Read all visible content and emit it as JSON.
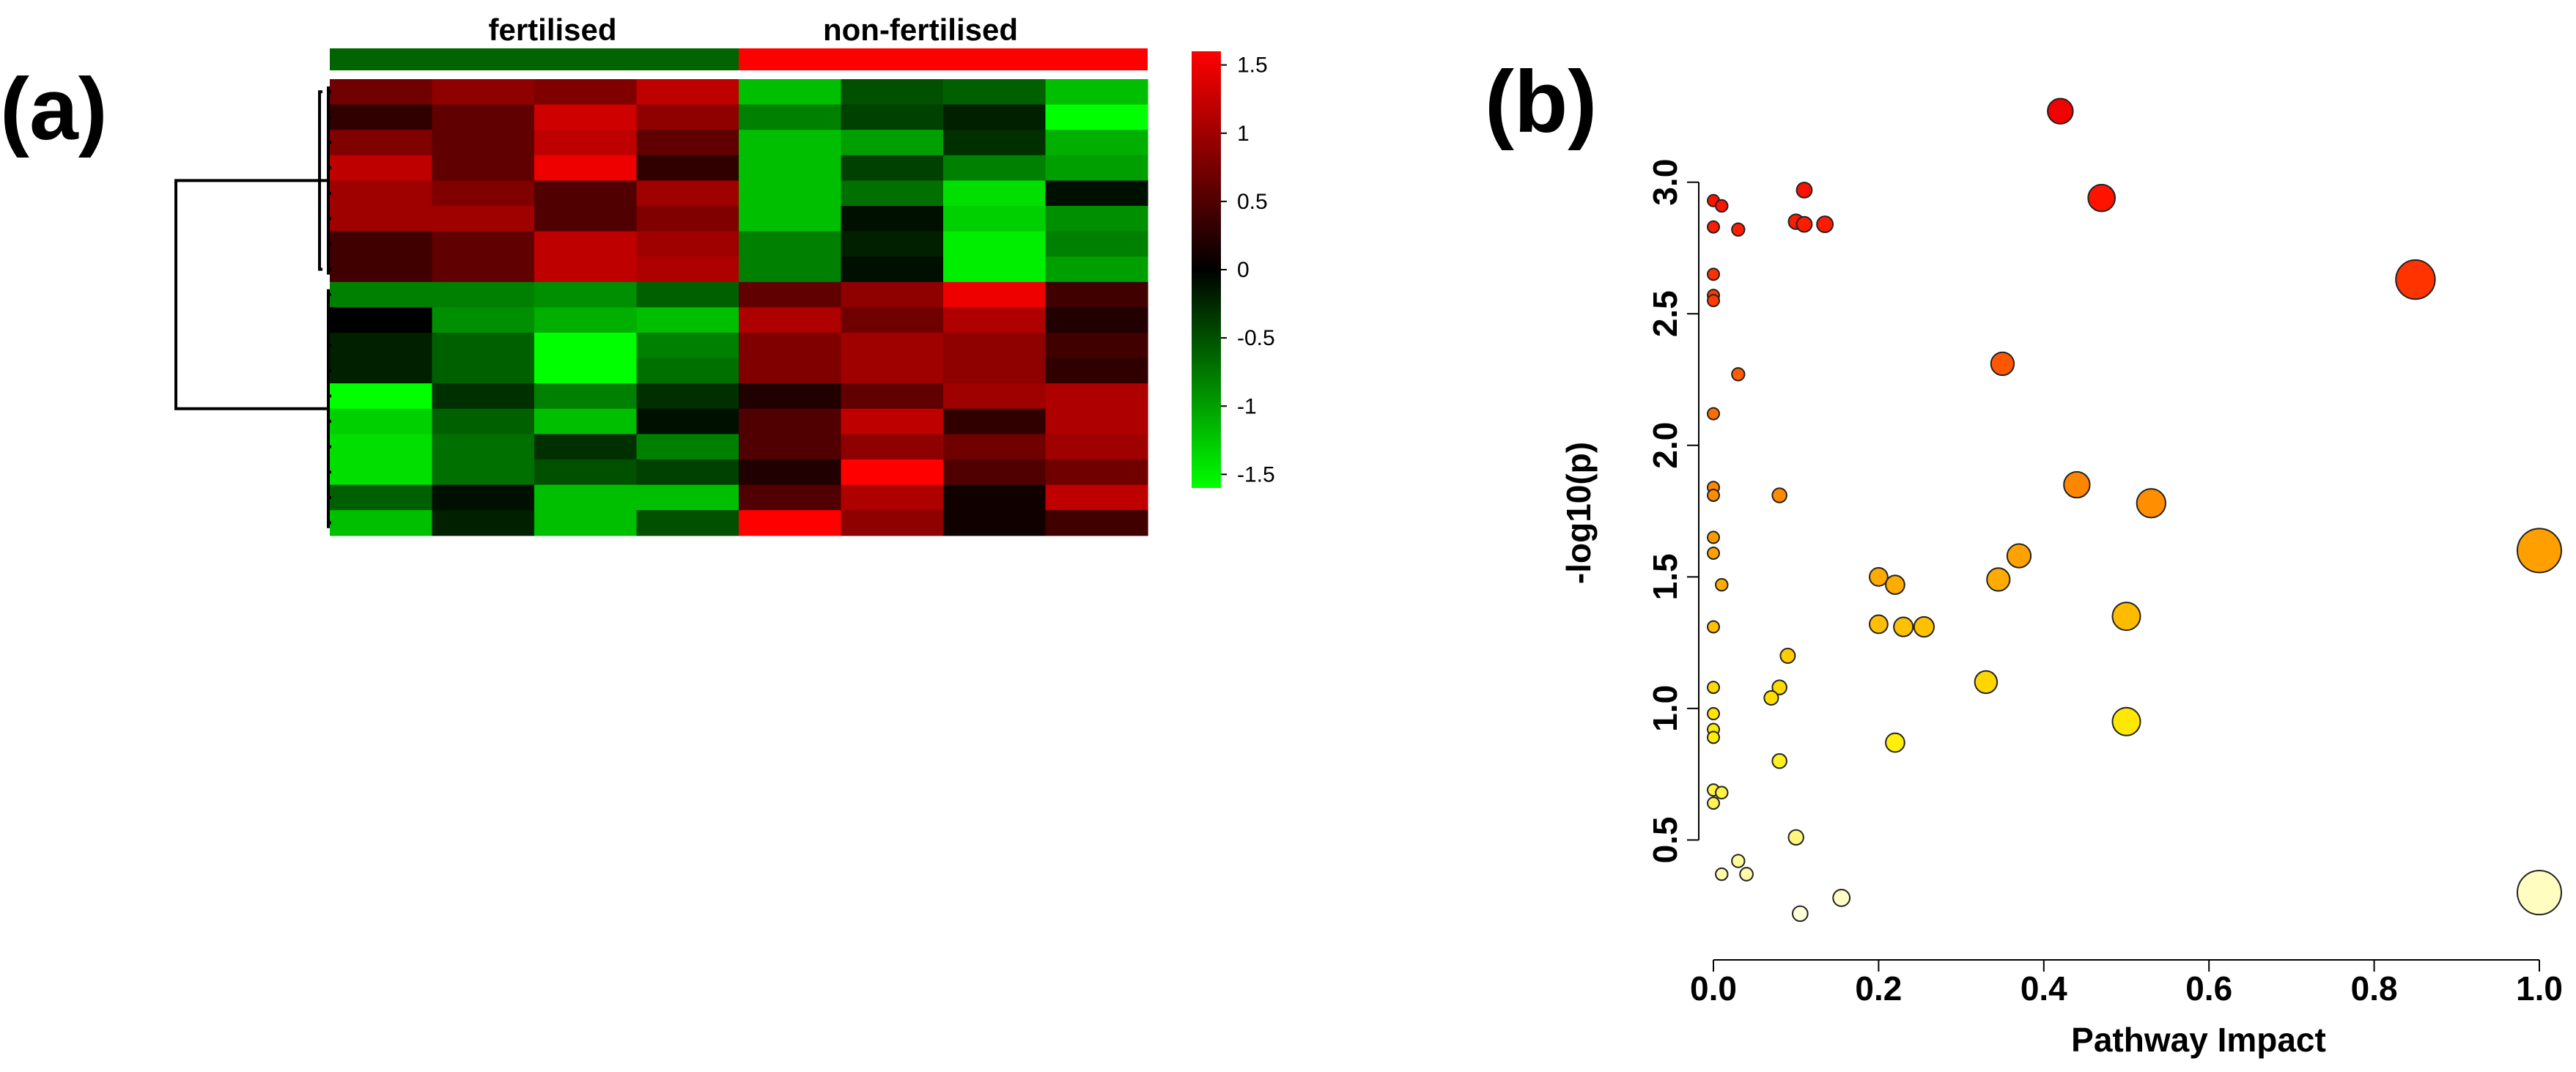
{
  "chart_data": [
    {
      "type": "heatmap",
      "panel_label": "(a)",
      "column_groups": [
        {
          "label": "fertilised",
          "color": "#006400",
          "columns": 4
        },
        {
          "label": "non-fertilised",
          "color": "#ff0000",
          "columns": 4
        }
      ],
      "color_scale": {
        "low": "#00ff00",
        "mid": "#000000",
        "high": "#ff0000",
        "min": -1.6,
        "max": 1.6,
        "tick_values": [
          1.5,
          1,
          0.5,
          0,
          -0.5,
          -1,
          -1.5
        ],
        "tick_labels": [
          "1.5",
          "1",
          "0.5",
          "0",
          "-0.5",
          "-1",
          "-1.5"
        ]
      },
      "rows": 18,
      "cols": 8,
      "values": [
        [
          0.7,
          0.9,
          0.8,
          1.2,
          -1.2,
          -0.5,
          -0.6,
          -1.2
        ],
        [
          0.3,
          0.6,
          1.3,
          0.9,
          -0.8,
          -0.4,
          -0.2,
          -1.6
        ],
        [
          0.8,
          0.6,
          1.2,
          0.6,
          -1.2,
          -1.0,
          -0.3,
          -1.1
        ],
        [
          1.2,
          0.6,
          1.5,
          0.3,
          -1.2,
          -0.4,
          -0.8,
          -1.0
        ],
        [
          1.0,
          0.8,
          0.5,
          1.0,
          -1.2,
          -0.7,
          -1.4,
          -0.1
        ],
        [
          1.0,
          1.0,
          0.5,
          0.8,
          -1.2,
          -0.1,
          -1.3,
          -0.9
        ],
        [
          0.4,
          0.6,
          1.2,
          1.0,
          -0.8,
          -0.2,
          -1.5,
          -0.8
        ],
        [
          0.4,
          0.6,
          1.2,
          1.1,
          -0.8,
          -0.1,
          -1.5,
          -1.0
        ],
        [
          -0.8,
          -0.8,
          -0.9,
          -0.6,
          0.6,
          0.9,
          1.5,
          0.4
        ],
        [
          0.0,
          -0.9,
          -1.1,
          -1.2,
          1.1,
          0.7,
          1.1,
          0.2
        ],
        [
          -0.2,
          -0.6,
          -1.6,
          -0.8,
          0.8,
          1.0,
          0.9,
          0.4
        ],
        [
          -0.2,
          -0.6,
          -1.6,
          -0.7,
          0.8,
          1.0,
          0.9,
          0.3
        ],
        [
          -1.6,
          -0.3,
          -0.8,
          -0.3,
          0.2,
          0.6,
          1.0,
          1.1
        ],
        [
          -1.3,
          -0.6,
          -1.2,
          -0.1,
          0.5,
          1.2,
          0.3,
          1.1
        ],
        [
          -1.4,
          -0.7,
          -0.3,
          -0.8,
          0.5,
          0.9,
          0.7,
          1.0
        ],
        [
          -1.4,
          -0.7,
          -0.5,
          -0.4,
          0.2,
          1.6,
          0.5,
          0.7
        ],
        [
          -0.6,
          -0.1,
          -1.2,
          -1.2,
          0.5,
          1.1,
          0.1,
          1.2
        ],
        [
          -1.2,
          -0.2,
          -1.2,
          -0.5,
          1.6,
          0.9,
          0.1,
          0.4
        ]
      ],
      "row_dendrogram": {
        "clusters": [
          8,
          10
        ]
      }
    },
    {
      "type": "scatter",
      "panel_label": "(b)",
      "xlabel": "Pathway Impact",
      "ylabel": "-log10(p)",
      "xlim": [
        0,
        1
      ],
      "ylim": [
        0.1,
        3.35
      ],
      "x_ticks": [
        0,
        0.2,
        0.4,
        0.6,
        0.8,
        1
      ],
      "x_tick_labels": [
        "0.0",
        "0.2",
        "0.4",
        "0.6",
        "0.8",
        "1.0"
      ],
      "y_ticks": [
        0.5,
        1,
        1.5,
        2,
        2.5,
        3
      ],
      "y_tick_labels": [
        "0.5",
        "1.0",
        "1.5",
        "2.0",
        "2.5",
        "3.0"
      ],
      "grid": false,
      "legend": "none",
      "color_note": "fill goes from pale yellow (low -log10 p) to red (high -log10 p); circle size grows with pathway impact",
      "points": [
        {
          "x": 0.42,
          "y": 3.27
        },
        {
          "x": 0.47,
          "y": 2.94
        },
        {
          "x": 0.11,
          "y": 2.97
        },
        {
          "x": 0.1,
          "y": 2.85
        },
        {
          "x": 0.11,
          "y": 2.84
        },
        {
          "x": 0.135,
          "y": 2.84
        },
        {
          "x": 0.03,
          "y": 2.82
        },
        {
          "x": 0.0,
          "y": 2.93
        },
        {
          "x": 0.01,
          "y": 2.91
        },
        {
          "x": 0.0,
          "y": 2.83
        },
        {
          "x": 0.0,
          "y": 2.65
        },
        {
          "x": 0.0,
          "y": 2.57
        },
        {
          "x": 0.0,
          "y": 2.55
        },
        {
          "x": 0.85,
          "y": 2.63
        },
        {
          "x": 0.35,
          "y": 2.31
        },
        {
          "x": 0.03,
          "y": 2.27
        },
        {
          "x": 0.0,
          "y": 2.12
        },
        {
          "x": 0.44,
          "y": 1.85
        },
        {
          "x": 0.53,
          "y": 1.78
        },
        {
          "x": 0.08,
          "y": 1.81
        },
        {
          "x": 0.0,
          "y": 1.84
        },
        {
          "x": 0.0,
          "y": 1.81
        },
        {
          "x": 0.0,
          "y": 1.65
        },
        {
          "x": 0.0,
          "y": 1.59
        },
        {
          "x": 1.0,
          "y": 1.6
        },
        {
          "x": 0.37,
          "y": 1.58
        },
        {
          "x": 0.345,
          "y": 1.49
        },
        {
          "x": 0.2,
          "y": 1.5
        },
        {
          "x": 0.22,
          "y": 1.47
        },
        {
          "x": 0.01,
          "y": 1.47
        },
        {
          "x": 0.0,
          "y": 1.31
        },
        {
          "x": 0.5,
          "y": 1.35
        },
        {
          "x": 0.2,
          "y": 1.32
        },
        {
          "x": 0.23,
          "y": 1.31
        },
        {
          "x": 0.255,
          "y": 1.31
        },
        {
          "x": 0.09,
          "y": 1.2
        },
        {
          "x": 0.33,
          "y": 1.1
        },
        {
          "x": 0.08,
          "y": 1.08
        },
        {
          "x": 0.07,
          "y": 1.04
        },
        {
          "x": 0.0,
          "y": 1.08
        },
        {
          "x": 0.0,
          "y": 0.98
        },
        {
          "x": 0.0,
          "y": 0.92
        },
        {
          "x": 0.0,
          "y": 0.89
        },
        {
          "x": 0.5,
          "y": 0.95
        },
        {
          "x": 0.22,
          "y": 0.87
        },
        {
          "x": 0.08,
          "y": 0.8
        },
        {
          "x": 0.0,
          "y": 0.69
        },
        {
          "x": 0.01,
          "y": 0.68
        },
        {
          "x": 0.0,
          "y": 0.64
        },
        {
          "x": 0.1,
          "y": 0.51
        },
        {
          "x": 0.03,
          "y": 0.42
        },
        {
          "x": 0.01,
          "y": 0.37
        },
        {
          "x": 0.04,
          "y": 0.37
        },
        {
          "x": 0.155,
          "y": 0.28
        },
        {
          "x": 0.105,
          "y": 0.22
        },
        {
          "x": 1.0,
          "y": 0.3
        }
      ]
    }
  ]
}
